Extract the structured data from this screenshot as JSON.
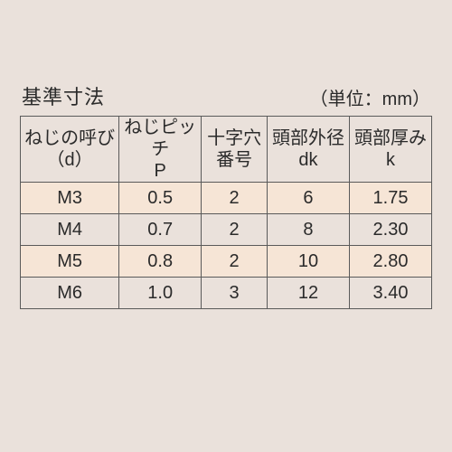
{
  "title": "基準寸法",
  "unit": "（単位：mm）",
  "table": {
    "columns": [
      {
        "line1": "ねじの呼び",
        "line2": "（d）"
      },
      {
        "line1": "ねじピッチ",
        "line2": "P"
      },
      {
        "line1": "十字穴",
        "line2": "番号"
      },
      {
        "line1": "頭部外径",
        "line2": "dk"
      },
      {
        "line1": "頭部厚み",
        "line2": "k"
      }
    ],
    "rows": [
      {
        "designation": "M3",
        "pitch": "0.5",
        "cross": "2",
        "dk": "6",
        "k": "1.75"
      },
      {
        "designation": "M4",
        "pitch": "0.7",
        "cross": "2",
        "dk": "8",
        "k": "2.30"
      },
      {
        "designation": "M5",
        "pitch": "0.8",
        "cross": "2",
        "dk": "10",
        "k": "2.80"
      },
      {
        "designation": "M6",
        "pitch": "1.0",
        "cross": "3",
        "dk": "12",
        "k": "3.40"
      }
    ],
    "background_color": "#eae1db",
    "row_alt_color": "#f6e5d6",
    "border_color": "#5a5a5a",
    "text_color": "#2a2a2a",
    "title_fontsize": 22,
    "cell_fontsize": 20
  }
}
